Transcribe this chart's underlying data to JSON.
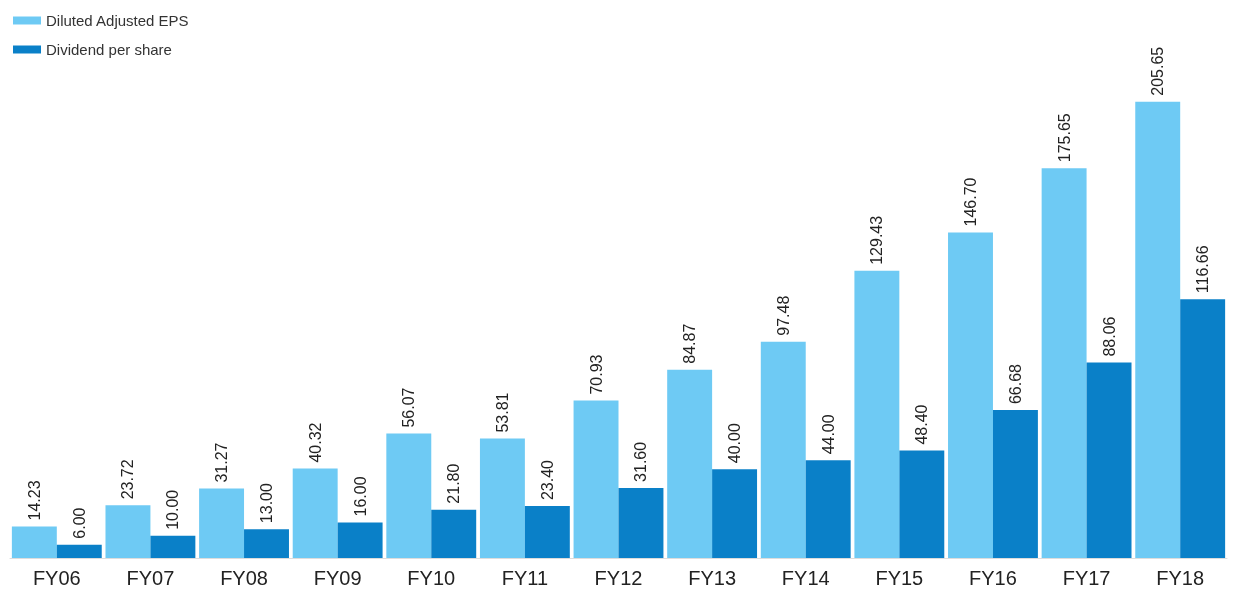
{
  "chart_data": {
    "type": "bar",
    "categories": [
      "FY06",
      "FY07",
      "FY08",
      "FY09",
      "FY10",
      "FY11",
      "FY12",
      "FY13",
      "FY14",
      "FY15",
      "FY16",
      "FY17",
      "FY18"
    ],
    "series": [
      {
        "name": "Diluted Adjusted EPS",
        "color": "#6ecaf4",
        "values": [
          14.23,
          23.72,
          31.27,
          40.32,
          56.07,
          53.81,
          70.93,
          84.87,
          97.48,
          129.43,
          146.7,
          175.65,
          205.65
        ],
        "value_labels": [
          "14.23",
          "23.72",
          "31.27",
          "40.32",
          "56.07",
          "53.81",
          "70.93",
          "84.87",
          "97.48",
          "129.43",
          "146.70",
          "175.65",
          "205.65"
        ]
      },
      {
        "name": "Dividend per share",
        "color": "#0a80c8",
        "values": [
          6.0,
          10.0,
          13.0,
          16.0,
          21.8,
          23.4,
          31.6,
          40.0,
          44.0,
          48.4,
          66.68,
          88.06,
          116.66
        ],
        "value_labels": [
          "6.00",
          "10.00",
          "13.00",
          "16.00",
          "21.80",
          "23.40",
          "31.60",
          "40.00",
          "44.00",
          "48.40",
          "66.68",
          "88.06",
          "116.66"
        ]
      }
    ],
    "legend": "top left",
    "tick_labels": "x"
  }
}
